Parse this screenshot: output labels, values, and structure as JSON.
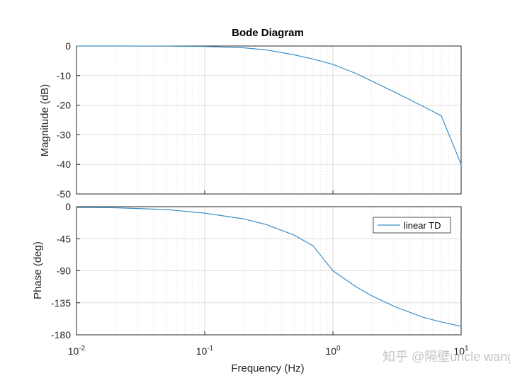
{
  "chart_data": {
    "type": "line",
    "title": "Bode Diagram",
    "xlabel": "Frequency  (Hz)",
    "x_scale": "log",
    "xlim": [
      0.01,
      10
    ],
    "x_ticks": [
      0.01,
      0.1,
      1,
      10
    ],
    "x_tick_labels": [
      {
        "base": "10",
        "exp": "-2"
      },
      {
        "base": "10",
        "exp": "-1"
      },
      {
        "base": "10",
        "exp": "0"
      },
      {
        "base": "10",
        "exp": "1"
      }
    ],
    "grid": true,
    "legend": {
      "entries": [
        "linear TD"
      ],
      "placement": "top-right"
    },
    "series_color": "#3a8fc7",
    "panels": [
      {
        "ylabel": "Magnitude (dB)",
        "ylim": [
          -50,
          0
        ],
        "y_ticks": [
          0,
          -10,
          -20,
          -30,
          -40,
          -50
        ],
        "x": [
          0.01,
          0.02,
          0.05,
          0.1,
          0.2,
          0.3,
          0.5,
          0.7,
          1,
          1.5,
          2,
          3,
          5,
          7,
          10
        ],
        "values": [
          0,
          0,
          -0.04,
          -0.17,
          -0.6,
          -1.3,
          -3.0,
          -4.4,
          -6.2,
          -9.2,
          -11.8,
          -15.5,
          -20.3,
          -23.6,
          -40.0
        ]
      },
      {
        "ylabel": "Phase (deg)",
        "ylim": [
          -180,
          0
        ],
        "y_ticks": [
          0,
          -45,
          -90,
          -135,
          -180
        ],
        "x": [
          0.01,
          0.02,
          0.05,
          0.1,
          0.2,
          0.3,
          0.5,
          0.7,
          1,
          1.5,
          2,
          3,
          5,
          7,
          10
        ],
        "values": [
          -1.0,
          -1.5,
          -4.0,
          -9.0,
          -17.0,
          -25.0,
          -40.0,
          -55.0,
          -90.0,
          -112.0,
          -125.0,
          -140.0,
          -155.0,
          -162.0,
          -168.0
        ]
      }
    ]
  },
  "watermark": "知乎 @隔壁uncle wang"
}
